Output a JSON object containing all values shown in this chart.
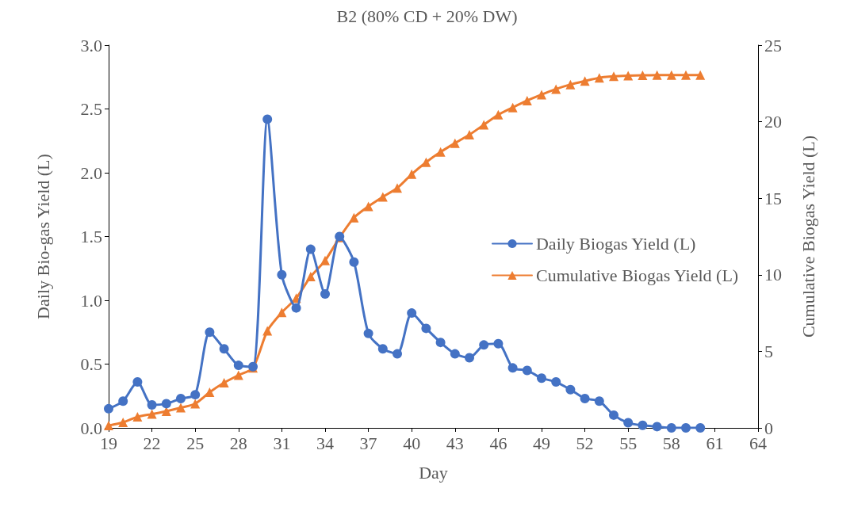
{
  "chart_data": {
    "type": "line",
    "title": "B2 (80% CD + 20% DW)",
    "xlabel": "Day",
    "ylabel": "Daily Bio-gas Yield (L)",
    "y2label": "Cumulative Biogas Yield (L)",
    "x": [
      19,
      20,
      21,
      22,
      23,
      24,
      25,
      26,
      27,
      28,
      29,
      30,
      31,
      32,
      33,
      34,
      35,
      36,
      37,
      38,
      39,
      40,
      41,
      42,
      43,
      44,
      45,
      46,
      47,
      48,
      49,
      50,
      51,
      52,
      53,
      54,
      55,
      56,
      57,
      58,
      59,
      60
    ],
    "series": [
      {
        "name": "Daily Biogas Yield (L)",
        "color": "#4472c4",
        "marker": "circle",
        "values": [
          0.15,
          0.21,
          0.36,
          0.18,
          0.19,
          0.23,
          0.26,
          0.75,
          0.62,
          0.49,
          0.48,
          2.42,
          1.2,
          0.94,
          1.4,
          1.05,
          1.5,
          1.3,
          0.74,
          0.62,
          0.58,
          0.9,
          0.78,
          0.67,
          0.58,
          0.55,
          0.65,
          0.66,
          0.47,
          0.45,
          0.39,
          0.36,
          0.3,
          0.23,
          0.21,
          0.1,
          0.04,
          0.02,
          0.01,
          0.0,
          0.0,
          0.0
        ]
      },
      {
        "name": "Cumulative Biogas Yield (L)",
        "color": "#ed7d31",
        "marker": "triangle",
        "axis": "y2",
        "values": [
          0.15,
          0.36,
          0.72,
          0.9,
          1.09,
          1.32,
          1.58,
          2.33,
          2.95,
          3.44,
          3.92,
          6.34,
          7.54,
          8.48,
          9.88,
          10.93,
          12.43,
          13.73,
          14.47,
          15.09,
          15.67,
          16.57,
          17.35,
          18.02,
          18.6,
          19.15,
          19.8,
          20.46,
          20.93,
          21.38,
          21.77,
          22.13,
          22.43,
          22.66,
          22.87,
          22.97,
          23.01,
          23.03,
          23.04,
          23.04,
          23.04,
          23.04
        ]
      }
    ],
    "xlim": [
      19,
      64
    ],
    "xticks": [
      19,
      22,
      25,
      28,
      31,
      34,
      37,
      40,
      43,
      46,
      49,
      52,
      55,
      58,
      61,
      64
    ],
    "ylim": [
      0,
      3
    ],
    "yticks": [
      {
        "value": 0,
        "label": "0.0"
      },
      {
        "value": 0.5,
        "label": "0.5"
      },
      {
        "value": 1,
        "label": "1.0"
      },
      {
        "value": 1.5,
        "label": "1.5"
      },
      {
        "value": 2,
        "label": "2.0"
      },
      {
        "value": 2.5,
        "label": "2.5"
      },
      {
        "value": 3,
        "label": "3.0"
      }
    ],
    "y2lim": [
      0,
      25
    ],
    "y2ticks": [
      0,
      5,
      10,
      15,
      20,
      25
    ],
    "grid": false,
    "legend": "right",
    "line_style": "solid"
  }
}
